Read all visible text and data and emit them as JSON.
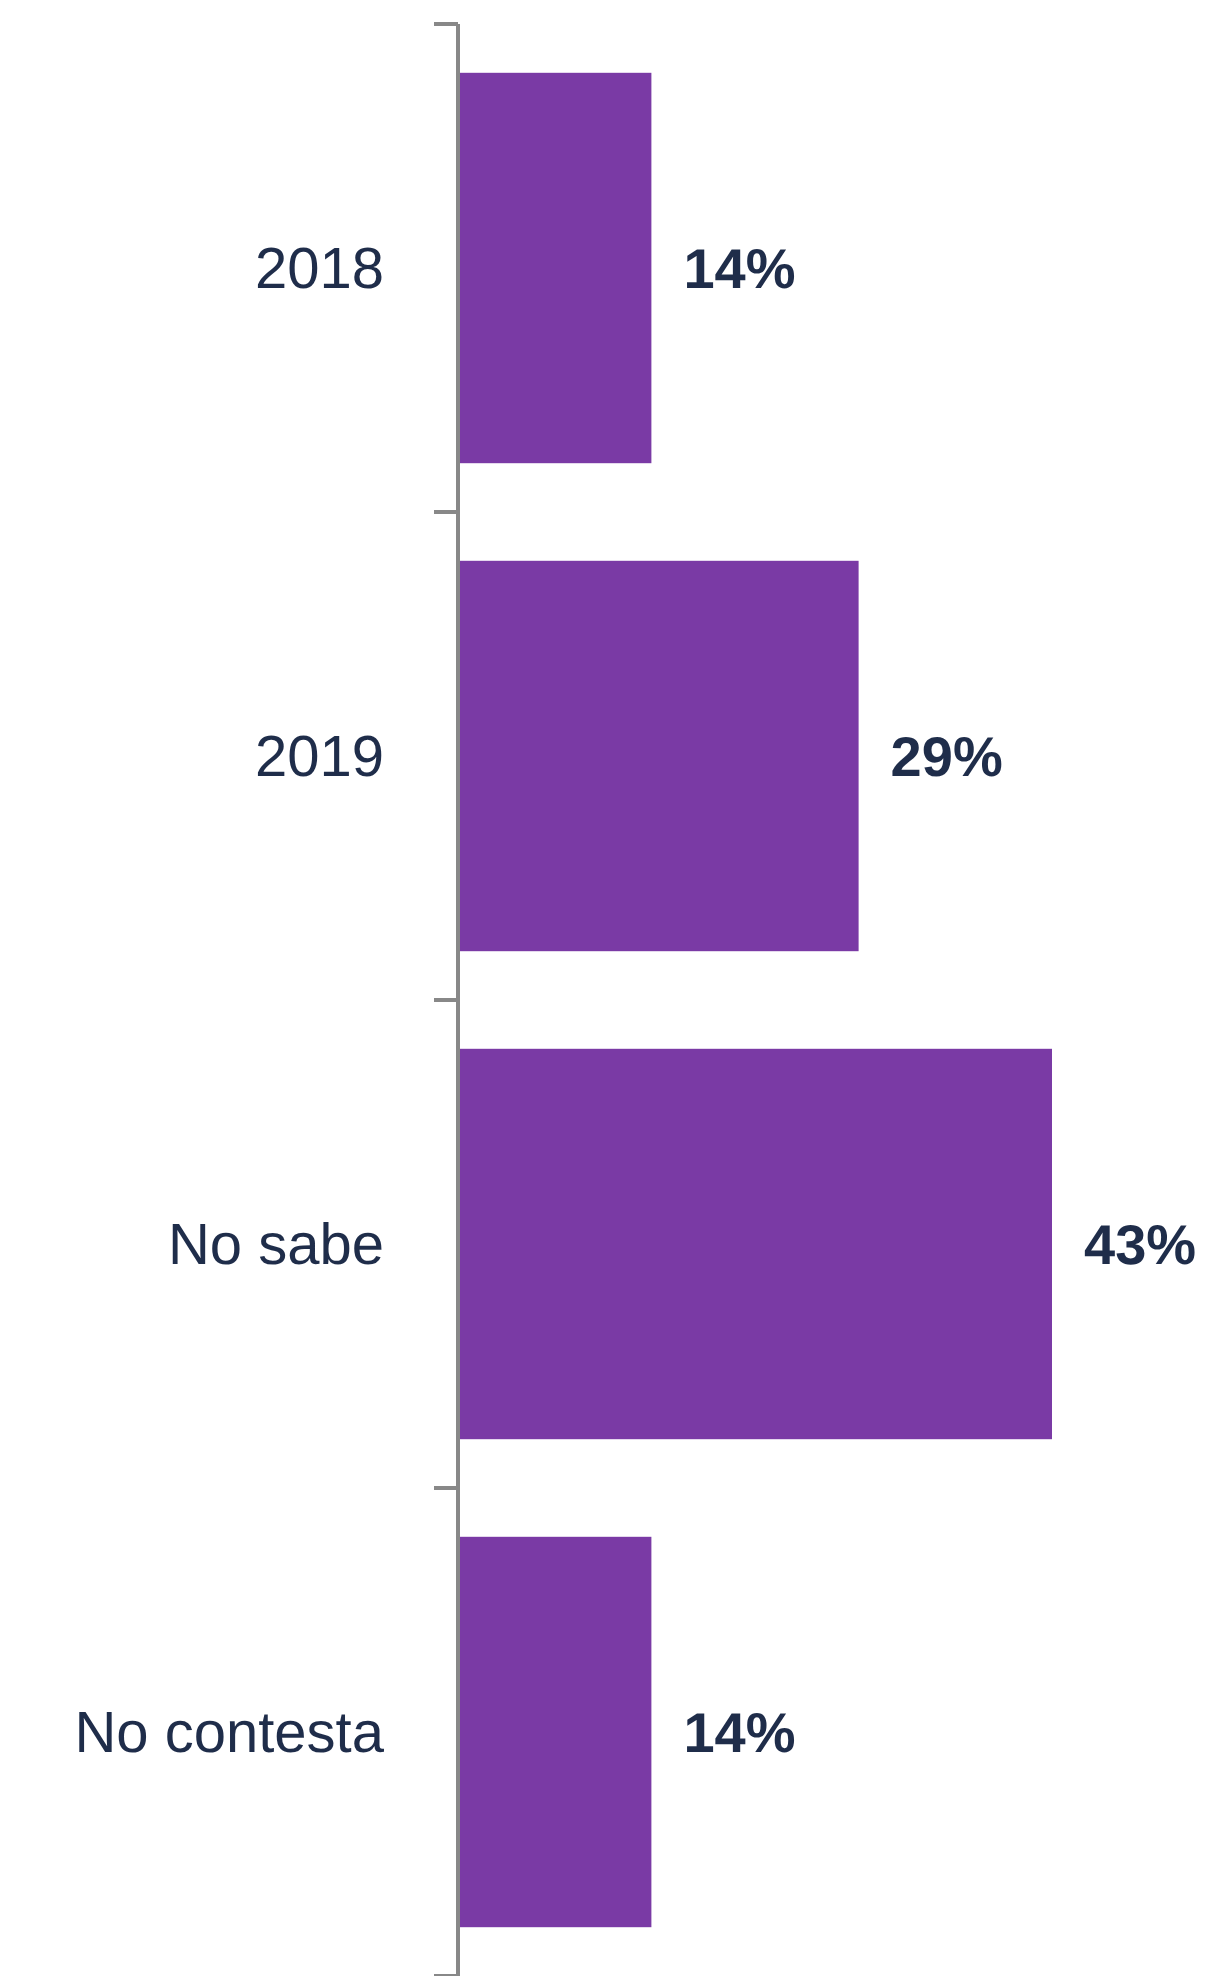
{
  "chart_data": {
    "type": "bar",
    "orientation": "horizontal",
    "categories": [
      "2018",
      "2019",
      "No sabe",
      "No contesta"
    ],
    "values": [
      14,
      29,
      43,
      14
    ],
    "color": "#7a3aa5",
    "value_labels": [
      "14%",
      "29%",
      "43%",
      "14%"
    ]
  }
}
